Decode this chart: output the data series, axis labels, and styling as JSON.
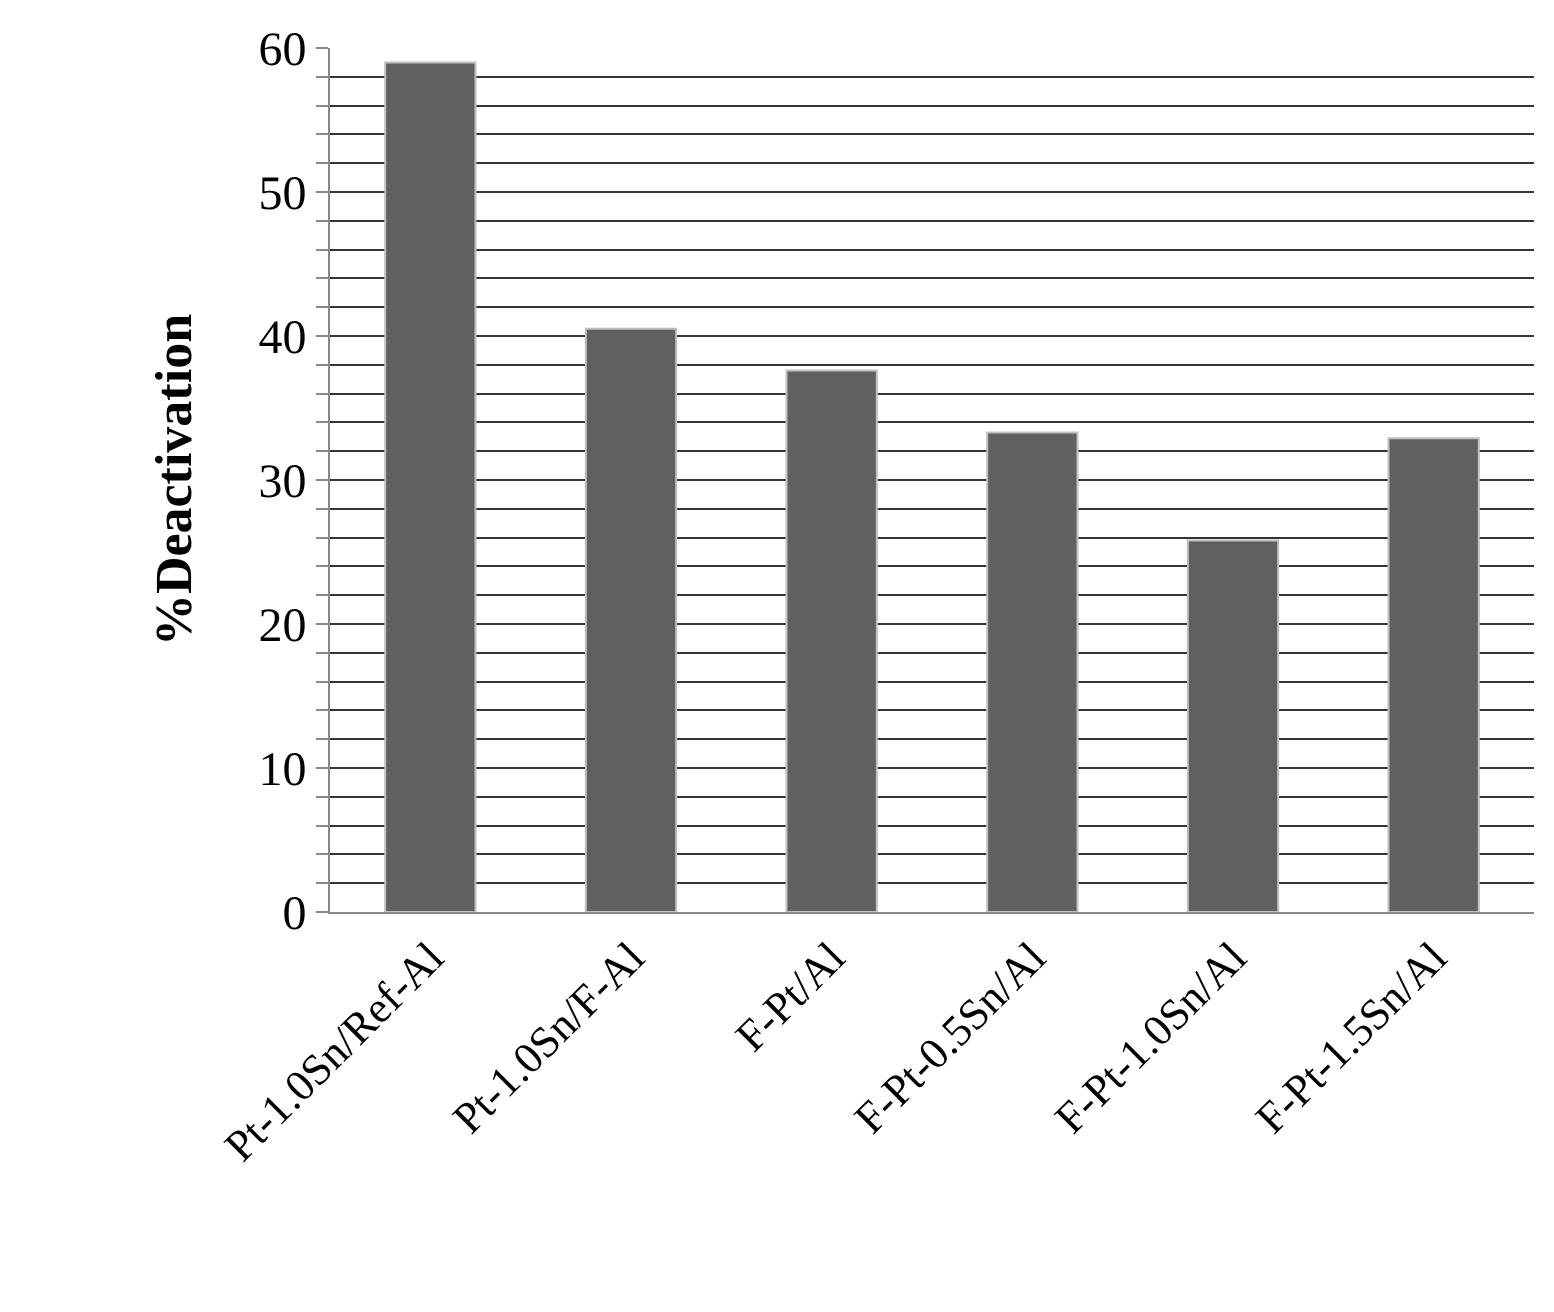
{
  "chart_data": {
    "type": "bar",
    "ylabel": "%Deactivation",
    "categories": [
      "Pt-1.0Sn/Ref-Al",
      "Pt-1.0Sn/F-Al",
      "F-Pt/Al",
      "F-Pt-0.5Sn/Al",
      "F-Pt-1.0Sn/Al",
      "F-Pt-1.5Sn/Al"
    ],
    "values": [
      59,
      40.5,
      37.6,
      33.3,
      25.8,
      32.9
    ],
    "color": "#606060",
    "ylim": [
      0,
      60
    ],
    "yticks": [
      0,
      {
        "value": 2,
        "label": null
      },
      {
        "value": 4,
        "label": null
      },
      {
        "value": 6,
        "label": null
      },
      {
        "value": 8,
        "label": null
      },
      10,
      {
        "value": 12,
        "label": null
      },
      {
        "value": 14,
        "label": null
      },
      {
        "value": 16,
        "label": null
      },
      {
        "value": 18,
        "label": null
      },
      20,
      {
        "value": 22,
        "label": null
      },
      {
        "value": 24,
        "label": null
      },
      {
        "value": 26,
        "label": null
      },
      {
        "value": 28,
        "label": null
      },
      30,
      {
        "value": 32,
        "label": null
      },
      {
        "value": 34,
        "label": null
      },
      {
        "value": 36,
        "label": null
      },
      {
        "value": 38,
        "label": null
      },
      40,
      {
        "value": 42,
        "label": null
      },
      {
        "value": 44,
        "label": null
      },
      {
        "value": 46,
        "label": null
      },
      {
        "value": 48,
        "label": null
      },
      50,
      {
        "value": 52,
        "label": null
      },
      {
        "value": 54,
        "label": null
      },
      {
        "value": 56,
        "label": null
      },
      {
        "value": 58,
        "label": null
      },
      60
    ],
    "grid": "y"
  }
}
